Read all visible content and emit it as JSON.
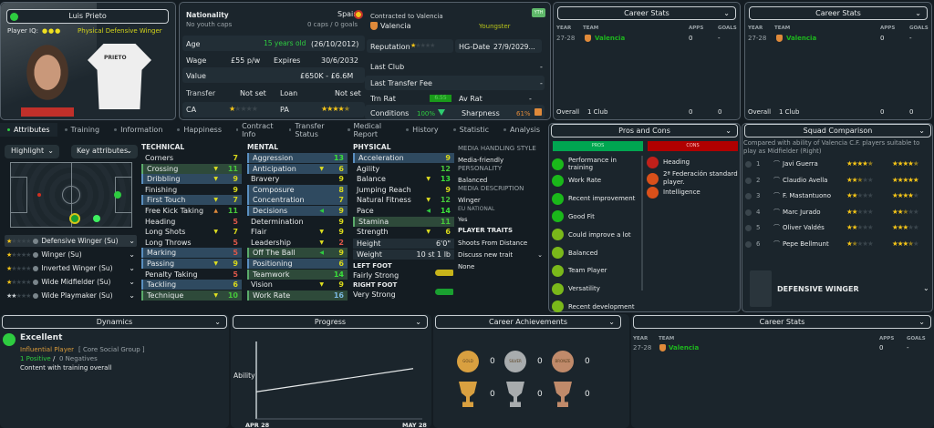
{
  "player": {
    "name": "Luis Prieto",
    "iq_label": "Player IQ:",
    "iq_dots": 3,
    "role_desc": "Physical Defensive Winger",
    "shirt_name": "PRIETO"
  },
  "info": {
    "nationality_label": "Nationality",
    "nationality": "Spain",
    "youth_caps": "No youth caps",
    "caps": "0 caps / 0 goals",
    "age_label": "Age",
    "age": "15 years old",
    "dob": "(26/10/2012)",
    "wage_label": "Wage",
    "wage": "£55 p/w",
    "expires_label": "Expires",
    "expires": "30/6/2032",
    "value_label": "Value",
    "value": "£650K - £6.6M",
    "transfer_label": "Transfer",
    "transfer": "Not set",
    "loan_label": "Loan",
    "loan": "Not set",
    "ca_label": "CA",
    "ca_stars": 1,
    "pa_label": "PA",
    "pa_stars": 4.5,
    "contracted": "Contracted to Valencia",
    "club": "Valencia",
    "status": "Youngster",
    "badge": "YTH",
    "reputation_label": "Reputation",
    "reputation_stars": 1,
    "hg_label": "HG-Date",
    "hg_date": "27/9/2029...",
    "last_club_label": "Last Club",
    "last_club": "-",
    "last_fee_label": "Last Transfer Fee",
    "last_fee": "-",
    "trn_label": "Trn Rat",
    "trn_rat": "6.55",
    "av_label": "Av Rat",
    "av_rat": "-",
    "conditions_label": "Conditions",
    "conditions": "100%",
    "sharpness_label": "Sharpness",
    "sharpness": "61%"
  },
  "career_stats": {
    "title": "Career Stats",
    "headers": [
      "YEAR",
      "TEAM",
      "APPS",
      "GOALS"
    ],
    "rows": [
      {
        "year": "27-28",
        "team": "Valencia",
        "apps": "0",
        "goals": "-"
      }
    ],
    "overall_label": "Overall",
    "overall_clubs": "1 Club",
    "overall_apps": "0",
    "overall_goals": "0"
  },
  "tabs": [
    "Attributes",
    "Training",
    "Information",
    "Happiness",
    "Contract Info",
    "Transfer Status",
    "Medical Report",
    "History",
    "Statistic",
    "Analysis"
  ],
  "filters": {
    "highlight": "Highlight",
    "key": "Key attributes"
  },
  "roles": [
    {
      "name": "Defensive Winger (Su)",
      "stars": 1
    },
    {
      "name": "Winger (Su)",
      "stars": 1
    },
    {
      "name": "Inverted Winger (Su)",
      "stars": 1
    },
    {
      "name": "Wide Midfielder (Su)",
      "stars": 1
    },
    {
      "name": "Wide Playmaker (Su)",
      "stars": 2
    }
  ],
  "technical": {
    "title": "TECHNICAL",
    "attrs": [
      {
        "n": "Corners",
        "v": 7
      },
      {
        "n": "Crossing",
        "v": 11,
        "h": "g",
        "a": "down"
      },
      {
        "n": "Dribbling",
        "v": 9,
        "h": "b",
        "a": "down"
      },
      {
        "n": "Finishing",
        "v": 9
      },
      {
        "n": "First Touch",
        "v": 7,
        "h": "b",
        "a": "down"
      },
      {
        "n": "Free Kick Taking",
        "v": 11,
        "a": "up"
      },
      {
        "n": "Heading",
        "v": 5
      },
      {
        "n": "Long Shots",
        "v": 7,
        "a": "down"
      },
      {
        "n": "Long Throws",
        "v": 5
      },
      {
        "n": "Marking",
        "v": 5,
        "h": "b"
      },
      {
        "n": "Passing",
        "v": 9,
        "h": "b",
        "a": "down"
      },
      {
        "n": "Penalty Taking",
        "v": 5
      },
      {
        "n": "Tackling",
        "v": 6,
        "h": "b"
      },
      {
        "n": "Technique",
        "v": 10,
        "h": "g",
        "a": "down"
      }
    ]
  },
  "mental": {
    "title": "MENTAL",
    "attrs": [
      {
        "n": "Aggression",
        "v": 13,
        "h": "b"
      },
      {
        "n": "Anticipation",
        "v": 6,
        "h": "b",
        "a": "down"
      },
      {
        "n": "Bravery",
        "v": 9
      },
      {
        "n": "Composure",
        "v": 8,
        "h": "b"
      },
      {
        "n": "Concentration",
        "v": 7,
        "h": "b"
      },
      {
        "n": "Decisions",
        "v": 9,
        "h": "b",
        "a": "left"
      },
      {
        "n": "Determination",
        "v": 9
      },
      {
        "n": "Flair",
        "v": 9,
        "a": "down"
      },
      {
        "n": "Leadership",
        "v": 2,
        "a": "down"
      },
      {
        "n": "Off The Ball",
        "v": 9,
        "h": "g",
        "a": "left"
      },
      {
        "n": "Positioning",
        "v": 6,
        "h": "b"
      },
      {
        "n": "Teamwork",
        "v": 14,
        "h": "g"
      },
      {
        "n": "Vision",
        "v": 9,
        "a": "down"
      },
      {
        "n": "Work Rate",
        "v": 16,
        "h": "g"
      }
    ]
  },
  "physical": {
    "title": "PHYSICAL",
    "attrs": [
      {
        "n": "Acceleration",
        "v": 9,
        "h": "b"
      },
      {
        "n": "Agility",
        "v": 12
      },
      {
        "n": "Balance",
        "v": 13,
        "a": "down"
      },
      {
        "n": "Jumping Reach",
        "v": 9
      },
      {
        "n": "Natural Fitness",
        "v": 12,
        "a": "down"
      },
      {
        "n": "Pace",
        "v": 14,
        "a": "left"
      },
      {
        "n": "Stamina",
        "v": 11,
        "h": "g"
      },
      {
        "n": "Strength",
        "v": 6,
        "a": "down"
      }
    ],
    "height_label": "Height",
    "height": "6'0\"",
    "weight_label": "Weight",
    "weight": "10 st 1 lb",
    "left_foot_label": "LEFT FOOT",
    "left_foot": "Fairly Strong",
    "right_foot_label": "RIGHT FOOT",
    "right_foot": "Very Strong"
  },
  "media": {
    "style_label": "MEDIA HANDLING STYLE",
    "style": "Media-friendly",
    "personality_label": "PERSONALITY",
    "personality": "Balanced",
    "desc_label": "MEDIA DESCRIPTION",
    "desc": "Winger",
    "eu_label": "EU NATIONAL",
    "eu": "Yes",
    "traits_label": "PLAYER TRAITS",
    "traits": [
      "Shoots From Distance"
    ],
    "discuss": "Discuss new trait",
    "none": "None"
  },
  "pros_cons": {
    "title": "Pros and Cons",
    "pros_label": "PROS",
    "cons_label": "CONS",
    "pros": [
      "Performance in training",
      "Work Rate",
      "Recent improvement",
      "Good Fit",
      "Could improve a lot",
      "Balanced",
      "Team Player",
      "Versatility",
      "Recent development"
    ],
    "cons": [
      "Heading",
      "2ª Federación standard player.",
      "Intelligence"
    ]
  },
  "squad": {
    "title": "Squad Comparison",
    "desc": "Compared with ability of Valencia C.F. players suitable to play as Midfielder (Right)",
    "players": [
      {
        "rank": "1",
        "name": "Javi Guerra",
        "ca": 4.5,
        "pa": 4.5
      },
      {
        "rank": "2",
        "name": "Claudio Avella",
        "ca": 2.5,
        "pa": 5
      },
      {
        "rank": "3",
        "name": "F. Mastantuono",
        "ca": 2,
        "pa": 4
      },
      {
        "rank": "4",
        "name": "Marc Jurado",
        "ca": 2,
        "pa": 2.5
      },
      {
        "rank": "5",
        "name": "Oliver Valdés",
        "ca": 2,
        "pa": 3
      },
      {
        "rank": "6",
        "name": "Pepe Bellmunt",
        "ca": 1.5,
        "pa": 3.5
      }
    ],
    "position": "DEFENSIVE WINGER"
  },
  "dynamics": {
    "title": "Dynamics",
    "level": "Excellent",
    "influence": "Influential Player",
    "group": "[ Core Social Group ]",
    "positive": "1 Positive",
    "sep": "/",
    "negative": "0 Negatives",
    "training": "Content with training overall"
  },
  "progress": {
    "title": "Progress",
    "chart_data": {
      "type": "line",
      "ylabel": "Ability",
      "categories": [
        "APR 28",
        "MAY 28"
      ],
      "series": [
        {
          "values": [
            0.35,
            0.65
          ]
        }
      ]
    }
  },
  "achievements": {
    "title": "Career Achievements",
    "medals": [
      {
        "label": "GOLD",
        "count": "0"
      },
      {
        "label": "SILVER",
        "count": "0"
      },
      {
        "label": "BRONZE",
        "count": "0"
      }
    ],
    "trophies": [
      "0",
      "0",
      "0"
    ]
  },
  "colors": {
    "pros": "#00a651",
    "cons": "#b00000",
    "accent_green": "#2ecc40",
    "star": "#f5c518"
  }
}
